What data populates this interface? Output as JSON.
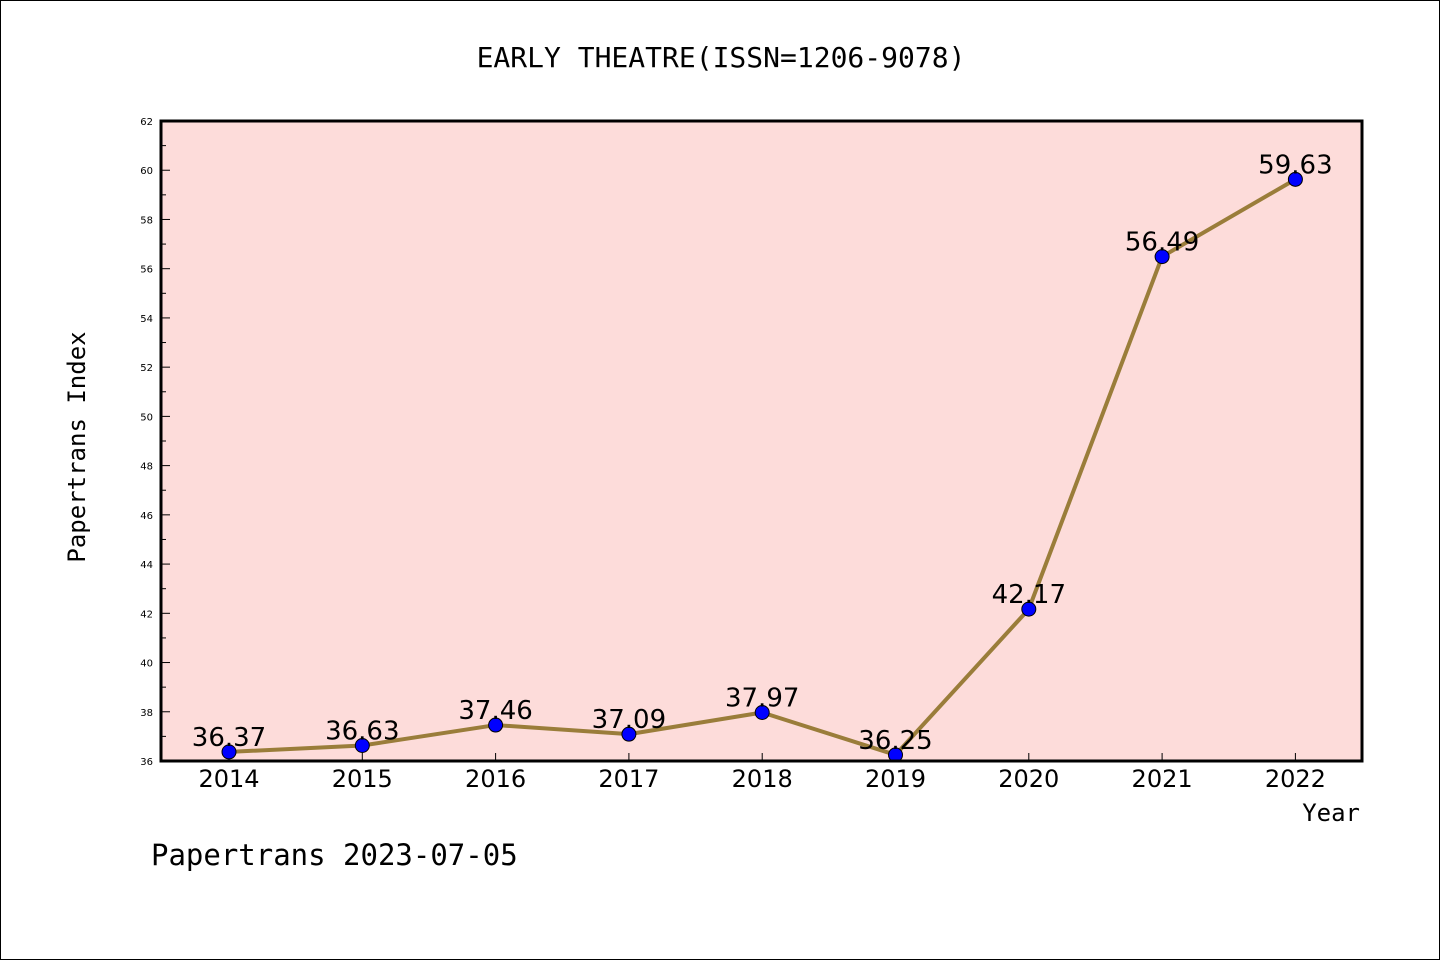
{
  "chart_data": {
    "type": "line",
    "title": "EARLY THEATRE(ISSN=1206-9078)",
    "xlabel": "Year",
    "ylabel": "Papertrans Index",
    "x": [
      "2014",
      "2015",
      "2016",
      "2017",
      "2018",
      "2019",
      "2020",
      "2021",
      "2022"
    ],
    "series": [
      {
        "values": [
          36.37,
          36.63,
          37.46,
          37.09,
          37.97,
          36.25,
          42.17,
          56.49,
          59.63
        ],
        "labels": [
          "36.37",
          "36.63",
          "37.46",
          "37.09",
          "37.97",
          "36.25",
          "42.17",
          "56.49",
          "59.63"
        ],
        "line_color": "#9a7d3a",
        "marker_color": "#0000ff"
      }
    ],
    "ylim": [
      36,
      62
    ],
    "yticks": [
      "36",
      "38",
      "40",
      "42",
      "44",
      "46",
      "48",
      "50",
      "52",
      "54",
      "56",
      "58",
      "60",
      "62"
    ],
    "plot_background": "#fddcda",
    "grid": false,
    "legend": "none"
  },
  "footer": {
    "text": "Papertrans 2023-07-05"
  }
}
